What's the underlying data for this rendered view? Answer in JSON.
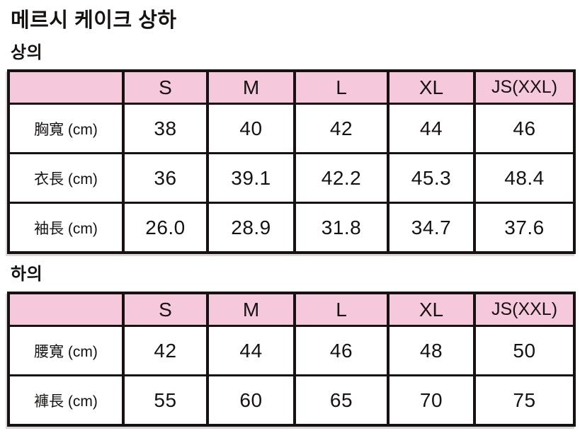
{
  "page": {
    "title": "메르시 케이크 상하",
    "sections": [
      {
        "label": "상의",
        "table": {
          "columns": [
            "",
            "S",
            "M",
            "L",
            "XL",
            "JS(XXL)"
          ],
          "rows": [
            {
              "label": "胸寬 (cm)",
              "values": [
                "38",
                "40",
                "42",
                "44",
                "46"
              ]
            },
            {
              "label": "衣長 (cm)",
              "values": [
                "36",
                "39.1",
                "42.2",
                "45.3",
                "48.4"
              ]
            },
            {
              "label": "袖長 (cm)",
              "values": [
                "26.0",
                "28.9",
                "31.8",
                "34.7",
                "37.6"
              ]
            }
          ]
        }
      },
      {
        "label": "하의",
        "table": {
          "columns": [
            "",
            "S",
            "M",
            "L",
            "XL",
            "JS(XXL)"
          ],
          "rows": [
            {
              "label": "腰寬 (cm)",
              "values": [
                "42",
                "44",
                "46",
                "48",
                "50"
              ]
            },
            {
              "label": "褲長 (cm)",
              "values": [
                "55",
                "60",
                "65",
                "70",
                "75"
              ]
            }
          ]
        }
      }
    ]
  },
  "colors": {
    "header_background": "#F6C8DB",
    "border": "#171111",
    "text": "#171212",
    "page_background": "#FFFFFF"
  }
}
